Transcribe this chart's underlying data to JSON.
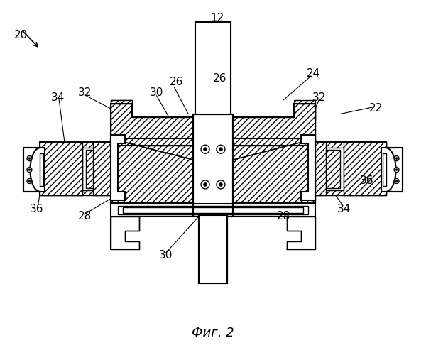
{
  "bg_color": "#ffffff",
  "line_color": "#000000",
  "title": "Фиг. 2",
  "fig_width": 6.0,
  "fig_height": 5.0,
  "hatch": "////",
  "lw": 1.0,
  "lw2": 1.5
}
